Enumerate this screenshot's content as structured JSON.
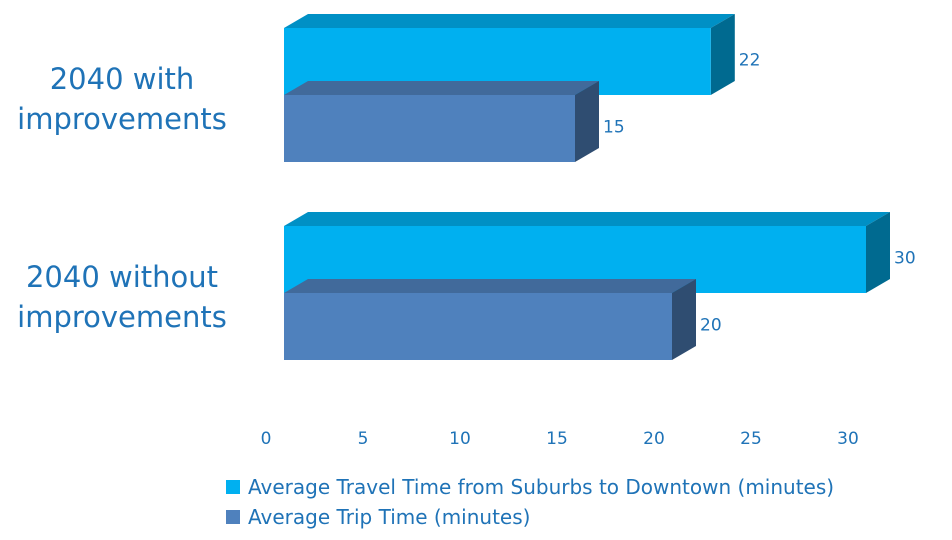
{
  "chart_data": {
    "type": "bar",
    "orientation": "horizontal",
    "style": "3d",
    "categories": [
      "2040 with\nimprovements",
      "2040 without\nimprovements"
    ],
    "series": [
      {
        "name": "Average Travel Time from Suburbs to Downtown (minutes)",
        "values": [
          22,
          30
        ],
        "color": "#00b0f0"
      },
      {
        "name": "Average Trip Time (minutes)",
        "values": [
          15,
          20
        ],
        "color": "#4f81bd"
      }
    ],
    "x_ticks": [
      0,
      5,
      10,
      15,
      20,
      25,
      30
    ],
    "xlim": [
      0,
      30
    ],
    "grid": false,
    "legend": "bottom",
    "text_color": "#1f73b7",
    "title": "",
    "xlabel": "",
    "ylabel": ""
  }
}
